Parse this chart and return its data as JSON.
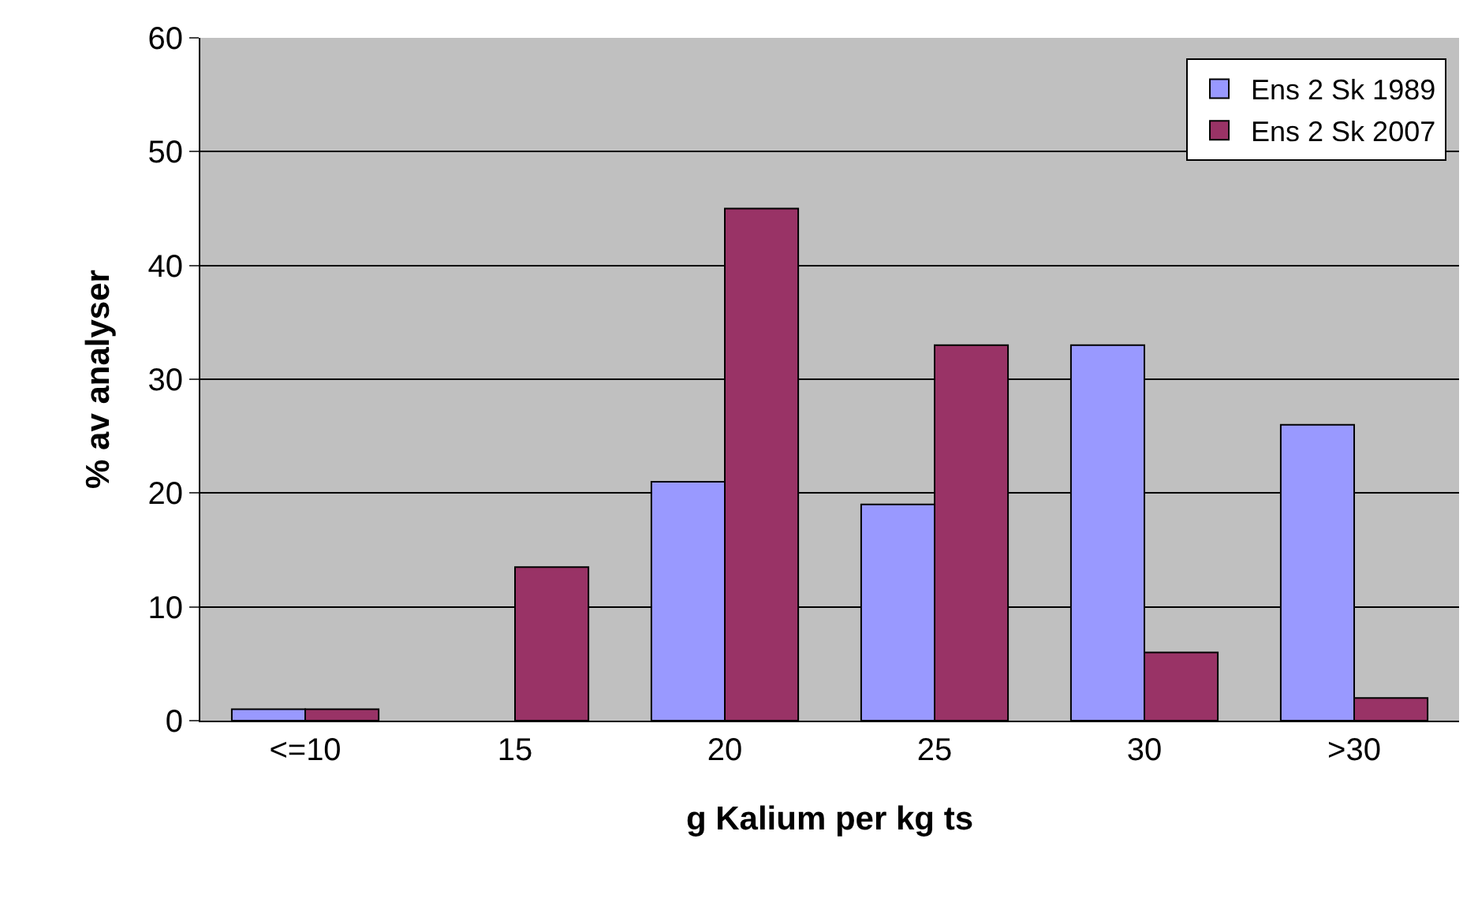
{
  "chart_data": {
    "type": "bar",
    "xlabel": "g Kalium per kg ts",
    "ylabel": "% av analyser",
    "categories": [
      "<=10",
      "15",
      "20",
      "25",
      "30",
      ">30"
    ],
    "series": [
      {
        "name": "Ens 2 Sk 1989",
        "color": "#9999ff",
        "values": [
          1,
          0,
          21,
          19,
          33,
          26
        ]
      },
      {
        "name": "Ens 2 Sk 2007",
        "color": "#993366",
        "values": [
          1,
          13.5,
          45,
          33,
          6,
          2
        ]
      }
    ],
    "ylim": [
      0,
      60
    ],
    "yticks": [
      0,
      10,
      20,
      30,
      40,
      50,
      60
    ],
    "grid": "y",
    "legend": "top right"
  }
}
